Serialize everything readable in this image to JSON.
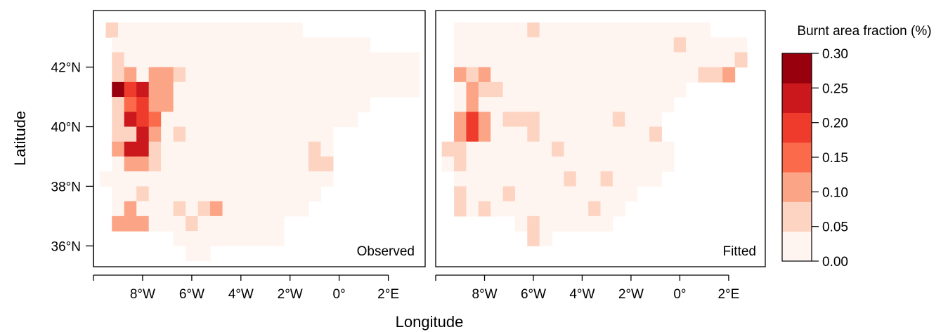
{
  "chart_data": {
    "type": "heatmap",
    "x_label": "Longitude",
    "y_label": "Latitude",
    "xlim": [
      -10,
      3.5
    ],
    "ylim": [
      35.3,
      43.9
    ],
    "x_ticks": [
      {
        "value": -8,
        "label": "8°W"
      },
      {
        "value": -6,
        "label": "6°W"
      },
      {
        "value": -4,
        "label": "4°W"
      },
      {
        "value": -2,
        "label": "2°W"
      },
      {
        "value": 0,
        "label": "0°"
      },
      {
        "value": 2,
        "label": "2°E"
      }
    ],
    "y_ticks": [
      {
        "value": 36,
        "label": "36°N"
      },
      {
        "value": 38,
        "label": "38°N"
      },
      {
        "value": 40,
        "label": "40°N"
      },
      {
        "value": 42,
        "label": "42°N"
      }
    ],
    "colorbar": {
      "title": "Burnt area fraction (%)",
      "breaks": [
        0.0,
        0.05,
        0.1,
        0.15,
        0.2,
        0.25,
        0.3
      ],
      "tick_labels": [
        "0.00",
        "0.05",
        "0.10",
        "0.15",
        "0.20",
        "0.25",
        "0.30"
      ],
      "colors": [
        "#fff5f0",
        "#fdd4c2",
        "#fca486",
        "#fb6a4a",
        "#ef3b2c",
        "#cb181d",
        "#99000d"
      ]
    },
    "grid": {
      "cell_size_deg": 0.5,
      "lat_of_first_row": 43.25,
      "row_step_deg": -0.5
    },
    "panels": [
      {
        "label": "Observed",
        "rows": [
          {
            "lon_start": -9.25,
            "classes": [
              1,
              0,
              0,
              0,
              0,
              0,
              0,
              0,
              0,
              0,
              0,
              0,
              0,
              0,
              0,
              0
            ]
          },
          {
            "lon_start": -9.0,
            "classes": [
              0,
              0,
              0,
              0,
              0,
              0,
              0,
              0,
              0,
              0,
              0,
              0,
              0,
              0,
              0,
              0,
              0,
              0,
              0,
              0,
              0
            ]
          },
          {
            "lon_start": -9.0,
            "classes": [
              1,
              0,
              0,
              0,
              0,
              0,
              0,
              0,
              0,
              0,
              0,
              0,
              0,
              0,
              0,
              0,
              0,
              0,
              0,
              0,
              0,
              0,
              0,
              0,
              0
            ]
          },
          {
            "lon_start": -9.0,
            "classes": [
              1,
              2,
              0,
              2,
              2,
              1,
              0,
              0,
              0,
              0,
              0,
              0,
              0,
              0,
              0,
              0,
              0,
              0,
              0,
              0,
              0,
              0,
              0,
              0,
              0
            ]
          },
          {
            "lon_start": -9.0,
            "classes": [
              6,
              4,
              5,
              2,
              2,
              0,
              0,
              0,
              0,
              0,
              0,
              0,
              0,
              0,
              0,
              0,
              0,
              0,
              0,
              0,
              0,
              0,
              0,
              0,
              0
            ]
          },
          {
            "lon_start": -9.0,
            "classes": [
              1,
              3,
              4,
              2,
              2,
              0,
              0,
              0,
              0,
              0,
              0,
              0,
              0,
              0,
              0,
              0,
              0,
              0,
              0,
              0,
              0
            ]
          },
          {
            "lon_start": -9.0,
            "classes": [
              1,
              5,
              4,
              3,
              0,
              0,
              0,
              0,
              0,
              0,
              0,
              0,
              0,
              0,
              0,
              0,
              0,
              0,
              0,
              0
            ]
          },
          {
            "lon_start": -9.0,
            "classes": [
              1,
              1,
              5,
              2,
              0,
              1,
              0,
              0,
              0,
              0,
              0,
              0,
              0,
              0,
              0,
              0,
              0,
              0
            ]
          },
          {
            "lon_start": -9.0,
            "classes": [
              2,
              5,
              5,
              1,
              0,
              0,
              0,
              0,
              0,
              0,
              0,
              0,
              0,
              0,
              0,
              0,
              1,
              0
            ]
          },
          {
            "lon_start": -9.0,
            "classes": [
              0,
              2,
              2,
              1,
              0,
              0,
              0,
              0,
              0,
              0,
              0,
              0,
              0,
              0,
              0,
              0,
              1,
              1
            ]
          },
          {
            "lon_start": -9.5,
            "classes": [
              0,
              0,
              0,
              0,
              0,
              0,
              0,
              0,
              0,
              0,
              0,
              0,
              0,
              0,
              0,
              0,
              0,
              0,
              0
            ]
          },
          {
            "lon_start": -9.0,
            "classes": [
              0,
              0,
              1,
              0,
              0,
              0,
              0,
              0,
              0,
              0,
              0,
              0,
              0,
              0,
              0,
              0,
              0
            ]
          },
          {
            "lon_start": -9.0,
            "classes": [
              0,
              2,
              0,
              0,
              0,
              1,
              0,
              1,
              2,
              0,
              0,
              0,
              0,
              0,
              0,
              0
            ]
          },
          {
            "lon_start": -9.0,
            "classes": [
              2,
              2,
              2,
              0,
              0,
              0,
              1,
              0,
              0,
              0,
              0,
              0,
              0,
              0
            ]
          },
          {
            "lon_start": -6.5,
            "classes": [
              0,
              0,
              0,
              0,
              0,
              0,
              0,
              0,
              0
            ]
          },
          {
            "lon_start": -6.0,
            "classes": [
              0,
              0
            ]
          }
        ]
      },
      {
        "label": "Fitted",
        "rows": [
          {
            "lon_start": -9.0,
            "classes": [
              0,
              0,
              0,
              0,
              0,
              0,
              1,
              0,
              0,
              0,
              0,
              0,
              0,
              0,
              0,
              0,
              0,
              0,
              0,
              0,
              0
            ]
          },
          {
            "lon_start": -9.0,
            "classes": [
              0,
              0,
              0,
              0,
              0,
              0,
              0,
              0,
              0,
              0,
              0,
              0,
              0,
              0,
              0,
              0,
              0,
              0,
              1,
              0,
              0,
              0,
              0,
              0
            ]
          },
          {
            "lon_start": -9.0,
            "classes": [
              0,
              0,
              0,
              0,
              0,
              0,
              0,
              0,
              0,
              0,
              0,
              0,
              0,
              0,
              0,
              0,
              0,
              0,
              0,
              0,
              0,
              0,
              0,
              1
            ]
          },
          {
            "lon_start": -9.0,
            "classes": [
              2,
              1,
              2,
              0,
              0,
              0,
              0,
              0,
              0,
              0,
              0,
              0,
              0,
              0,
              0,
              0,
              0,
              0,
              0,
              0,
              1,
              1,
              2
            ]
          },
          {
            "lon_start": -9.0,
            "classes": [
              0,
              2,
              1,
              1,
              0,
              0,
              0,
              0,
              0,
              0,
              0,
              0,
              0,
              0,
              0,
              0,
              0,
              0,
              0
            ]
          },
          {
            "lon_start": -9.0,
            "classes": [
              0,
              2,
              0,
              0,
              0,
              0,
              0,
              0,
              0,
              0,
              0,
              0,
              0,
              0,
              0,
              0,
              0,
              0
            ]
          },
          {
            "lon_start": -9.0,
            "classes": [
              2,
              4,
              2,
              0,
              1,
              1,
              1,
              0,
              0,
              0,
              0,
              0,
              0,
              1,
              0,
              0,
              0
            ]
          },
          {
            "lon_start": -9.0,
            "classes": [
              2,
              4,
              2,
              0,
              0,
              0,
              1,
              0,
              0,
              0,
              0,
              0,
              0,
              0,
              0,
              0,
              1
            ]
          },
          {
            "lon_start": -9.5,
            "classes": [
              1,
              1,
              0,
              0,
              0,
              0,
              0,
              0,
              0,
              1,
              0,
              0,
              0,
              0,
              0,
              0,
              0,
              0,
              0
            ]
          },
          {
            "lon_start": -9.5,
            "classes": [
              0,
              1,
              0,
              0,
              0,
              0,
              0,
              0,
              0,
              0,
              0,
              0,
              0,
              0,
              0,
              0,
              0,
              0,
              0
            ]
          },
          {
            "lon_start": -9.0,
            "classes": [
              0,
              0,
              0,
              0,
              0,
              0,
              0,
              0,
              0,
              1,
              0,
              0,
              1,
              0,
              0,
              0,
              0
            ]
          },
          {
            "lon_start": -9.0,
            "classes": [
              1,
              0,
              0,
              0,
              1,
              0,
              0,
              0,
              0,
              0,
              0,
              0,
              0,
              0,
              0
            ]
          },
          {
            "lon_start": -9.0,
            "classes": [
              1,
              0,
              1,
              0,
              0,
              0,
              0,
              0,
              0,
              0,
              0,
              1,
              0,
              0
            ]
          },
          {
            "lon_start": -6.5,
            "classes": [
              0,
              1,
              0,
              0,
              0,
              0,
              0,
              0
            ]
          },
          {
            "lon_start": -6.0,
            "classes": [
              1,
              0
            ]
          }
        ]
      }
    ]
  }
}
